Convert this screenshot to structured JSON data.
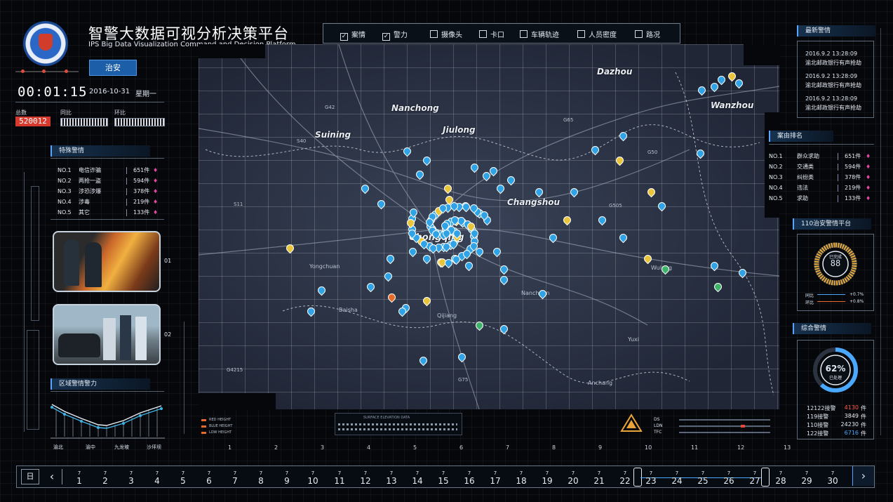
{
  "header": {
    "title_cn": "智警大数据可视分析决策平台",
    "title_en": "IPS  Big Data Visualization Command and Decision Platform",
    "mode_button": "治安",
    "timer": "00:01:15",
    "date": "2016-10-31",
    "weekday": "星期一"
  },
  "stats": {
    "total_label": "总数",
    "total_value": "520012",
    "yoy_label": "同比",
    "mom_label": "环比"
  },
  "special_alerts": {
    "title": "特殊警情",
    "rows": [
      {
        "no": "NO.1",
        "name": "电信诈骗",
        "count": "651件"
      },
      {
        "no": "NO.2",
        "name": "两抢一盗",
        "count": "594件"
      },
      {
        "no": "NO.3",
        "name": "涉恐涉爆",
        "count": "378件"
      },
      {
        "no": "NO.4",
        "name": "涉毒",
        "count": "219件"
      },
      {
        "no": "NO.5",
        "name": "其它",
        "count": "133件"
      }
    ]
  },
  "photo_labels": [
    "01",
    "02"
  ],
  "region_chart": {
    "title": "区域警情警力",
    "labels": [
      "渝北",
      "渝中",
      "九龙坡",
      "沙坪坝"
    ]
  },
  "filters": [
    {
      "label": "案情",
      "checked": true
    },
    {
      "label": "警力",
      "checked": true
    },
    {
      "label": "摄像头",
      "checked": false
    },
    {
      "label": "卡口",
      "checked": false
    },
    {
      "label": "车辆轨迹",
      "checked": false
    },
    {
      "label": "人员密度",
      "checked": false
    },
    {
      "label": "路况",
      "checked": false
    }
  ],
  "map": {
    "cities": [
      "Dazhou",
      "Nanchong",
      "Jiulong",
      "Suining",
      "Changshou",
      "Wanzhou",
      "Chongqing",
      "Wulong",
      "Nanchuan",
      "Qijiang",
      "Yuxi",
      "Anchang"
    ],
    "towns": [
      "Yongchuan",
      "Baisha"
    ],
    "roads": [
      "G65",
      "G50",
      "G42",
      "S40",
      "S11",
      "G505",
      "G75",
      "G4215"
    ],
    "x_axis": [
      "1",
      "2",
      "3",
      "4",
      "5",
      "6",
      "7",
      "8",
      "9",
      "10",
      "11",
      "12",
      "13"
    ],
    "legend_small": [
      "RED HEIGHT",
      "BLUE HEIGHT",
      "LOW HEIGHT"
    ],
    "elevation_label": "SURFACE ELEVATION DATA",
    "gauge_labels": [
      "DS",
      "LDN",
      "TFC"
    ]
  },
  "latest_alerts": {
    "title": "最新警情",
    "items": [
      {
        "time": "2016.9.2  13:28:09",
        "text": "渝北邮政银行有声抢劫"
      },
      {
        "time": "2016.9.2  13:28:09",
        "text": "渝北邮政银行有声抢劫"
      },
      {
        "time": "2016.9.2  13:28:09",
        "text": "渝北邮政银行有声抢劫"
      }
    ]
  },
  "case_rank": {
    "title": "案由排名",
    "rows": [
      {
        "no": "NO.1",
        "name": "群众求助",
        "count": "651件"
      },
      {
        "no": "NO.2",
        "name": "交通类",
        "count": "594件"
      },
      {
        "no": "NO.3",
        "name": "纠纷类",
        "count": "378件"
      },
      {
        "no": "NO.4",
        "name": "违法",
        "count": "219件"
      },
      {
        "no": "NO.5",
        "name": "求助",
        "count": "133件"
      }
    ]
  },
  "platform110": {
    "title": "110治安警情平台",
    "gauge_caption": "已完成",
    "gauge_value": "88",
    "rows": [
      {
        "label": "同比",
        "value": "+0.7%"
      },
      {
        "label": "环比",
        "value": "+0.8%"
      }
    ]
  },
  "overall": {
    "title": "综合警情",
    "percent": "62%",
    "percent_caption": "已处理",
    "percent_fraction": 0.62,
    "rows": [
      {
        "label": "12122接警",
        "value": "4130",
        "unit": "件",
        "color": "#ff5a4a"
      },
      {
        "label": "119接警",
        "value": "3849",
        "unit": "件",
        "color": "#e6ecf3"
      },
      {
        "label": "110接警",
        "value": "24230",
        "unit": "件",
        "color": "#e6ecf3"
      },
      {
        "label": "122接警",
        "value": "6716",
        "unit": "件",
        "color": "#4aa8ff"
      }
    ]
  },
  "timeline": {
    "day_button": "日",
    "month": "7",
    "days": [
      "1",
      "2",
      "3",
      "4",
      "5",
      "6",
      "7",
      "8",
      "9",
      "10",
      "11",
      "12",
      "13",
      "14",
      "15",
      "16",
      "17",
      "18",
      "19",
      "20",
      "21",
      "22",
      "23",
      "24",
      "25",
      "26",
      "27",
      "28",
      "29",
      "30"
    ]
  },
  "colors": {
    "accent": "#2f7fd8",
    "alert": "#d63a2e",
    "pin": "#e7479f"
  }
}
